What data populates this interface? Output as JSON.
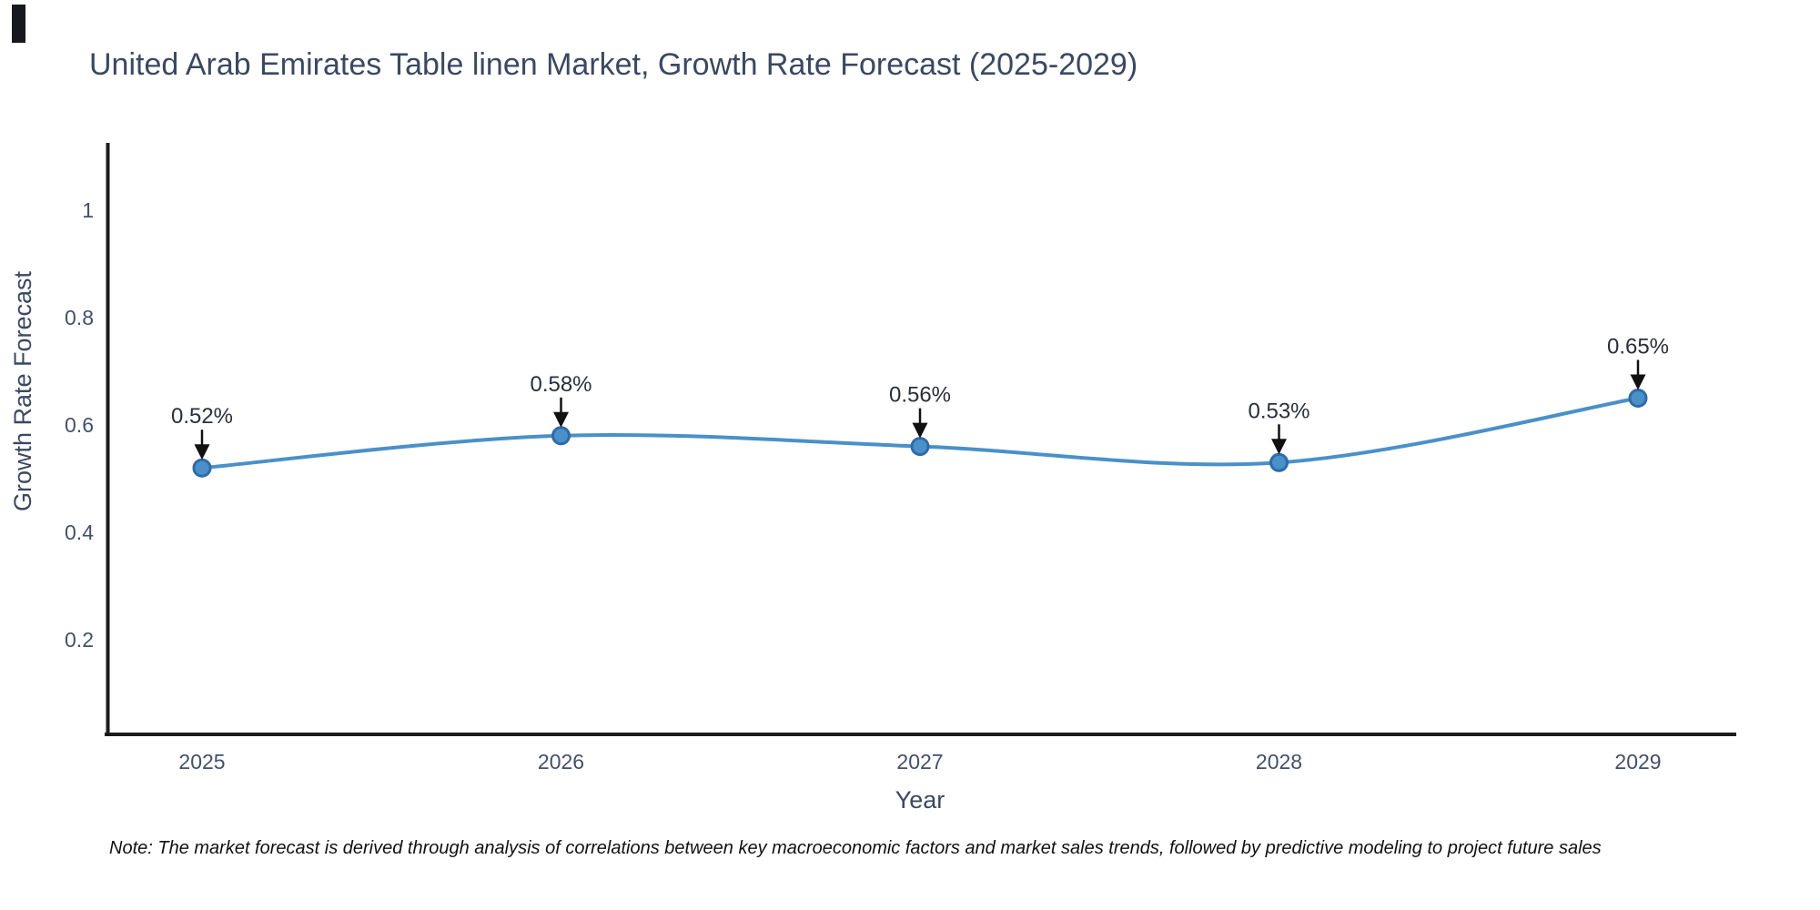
{
  "title": "United Arab Emirates Table linen Market, Growth Rate Forecast (2025-2029)",
  "note": "Note: The market forecast is derived through analysis of correlations between key macroeconomic factors and market sales trends, followed by predictive modeling to project future sales",
  "chart_data": {
    "type": "line",
    "title": "United Arab Emirates Table linen Market, Growth Rate Forecast (2025-2029)",
    "x": [
      2025,
      2026,
      2027,
      2028,
      2029
    ],
    "xticks": [
      "2025",
      "2026",
      "2027",
      "2028",
      "2029"
    ],
    "yticks": [
      0.2,
      0.4,
      0.6,
      0.8,
      1
    ],
    "ytick_labels": [
      "0.2",
      "0.4",
      "0.6",
      "0.8",
      "1"
    ],
    "series": [
      {
        "name": "Growth Rate Forecast",
        "values": [
          0.52,
          0.58,
          0.56,
          0.53,
          0.65
        ]
      }
    ],
    "point_labels": [
      "0.52%",
      "0.58%",
      "0.56%",
      "0.53%",
      "0.65%"
    ],
    "xlabel": "Year",
    "ylabel": "Growth Rate Forecast",
    "ylim": [
      0.02,
      1.12
    ],
    "grid": false,
    "legend": false,
    "line_color": "#4a90c9",
    "marker_fill_color": "#4a90c9",
    "marker_edge_color": "#2f6ba8",
    "annotation_arrow_color": "#111111",
    "annotation_text_color": "#2a2f38"
  },
  "colors": {
    "title_text": "#3b4861",
    "tick_text": "#44506a",
    "axis_line": "#1c1c1c",
    "background": "#ffffff"
  }
}
